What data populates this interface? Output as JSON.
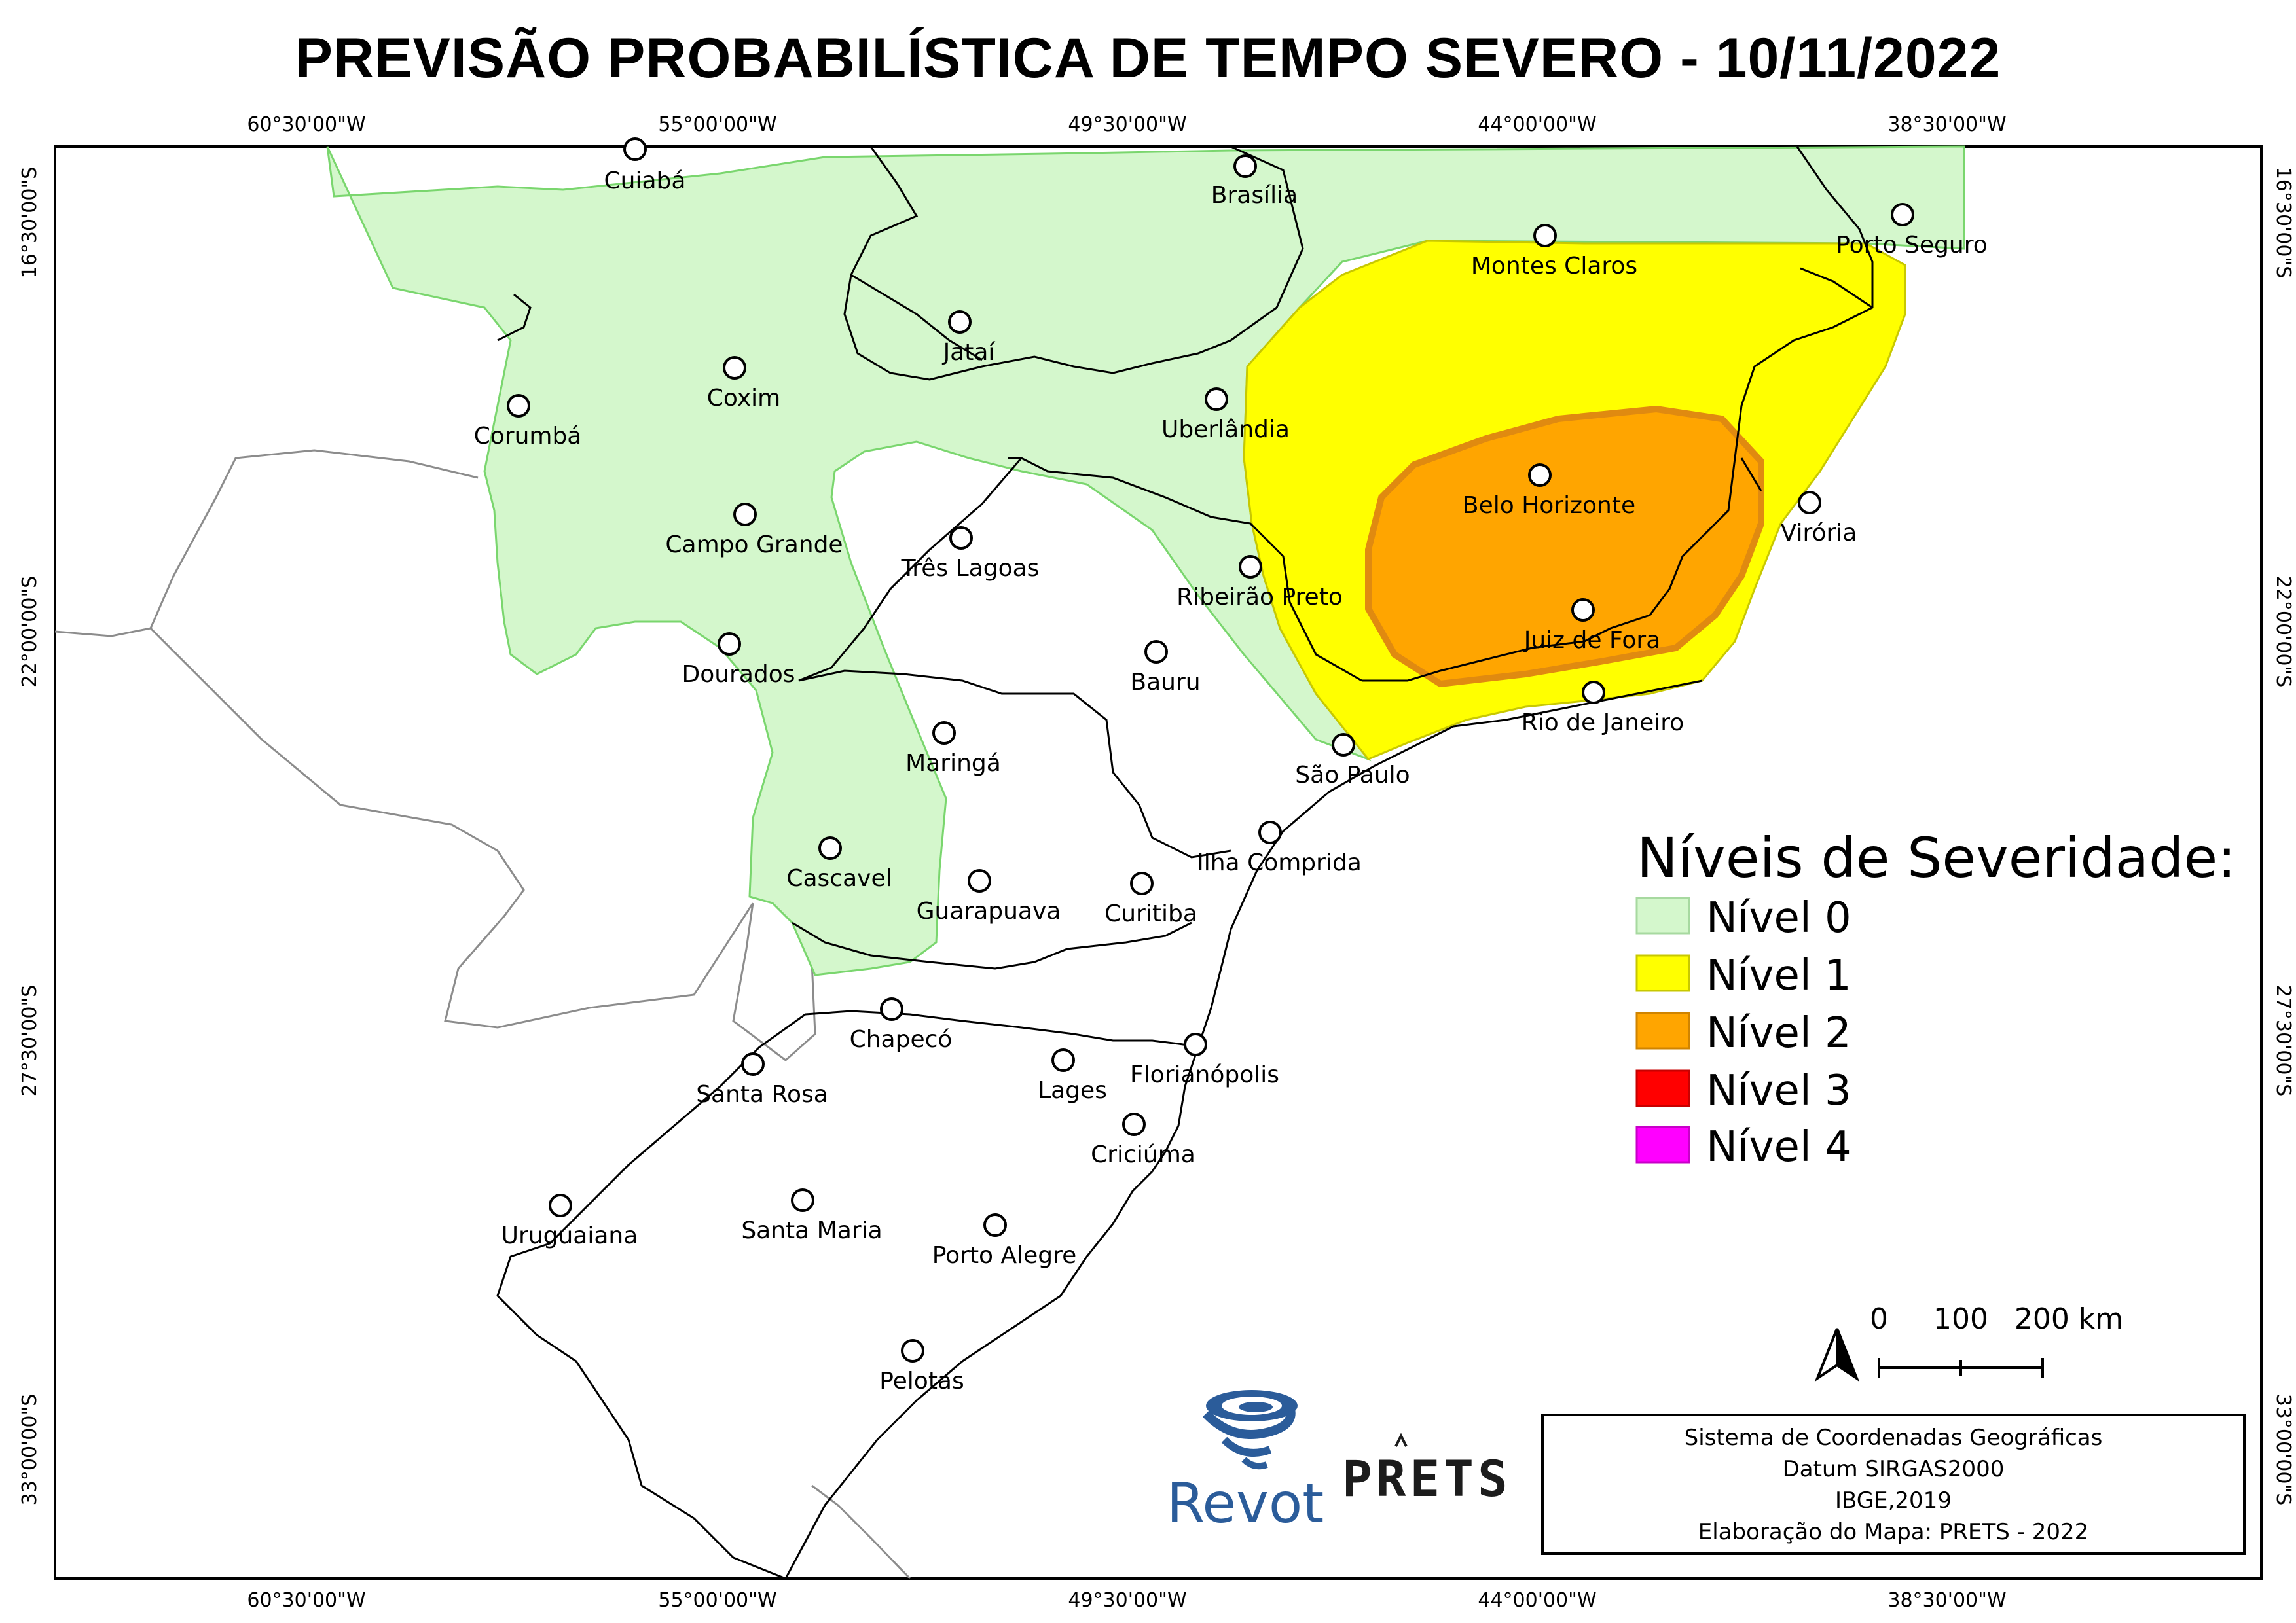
{
  "title": "PREVISÃO PROBABILÍSTICA DE TEMPO SEVERO - 10/11/2022",
  "coords": {
    "longitudes": [
      "60°30'00\"W",
      "55°00'00\"W",
      "49°30'00\"W",
      "44°00'00\"W",
      "38°30'00\"W"
    ],
    "latitudes": [
      "16°30'00\"S",
      "22°00'00\"S",
      "27°30'00\"S",
      "33°00'00\"S"
    ]
  },
  "cities": [
    {
      "name": "Cuiabá"
    },
    {
      "name": "Brasília"
    },
    {
      "name": "Porto Seguro"
    },
    {
      "name": "Montes Claros"
    },
    {
      "name": "Jataí"
    },
    {
      "name": "Coxim"
    },
    {
      "name": "Corumbá"
    },
    {
      "name": "Uberlândia"
    },
    {
      "name": "Belo Horizonte"
    },
    {
      "name": "Campo Grande"
    },
    {
      "name": "Três Lagoas"
    },
    {
      "name": "Ribeirão Preto"
    },
    {
      "name": "Virória"
    },
    {
      "name": "Juiz de Fora"
    },
    {
      "name": "Dourados"
    },
    {
      "name": "Bauru"
    },
    {
      "name": "Rio de Janeiro"
    },
    {
      "name": "Maringá"
    },
    {
      "name": "São Paulo"
    },
    {
      "name": "Ilha Comprida"
    },
    {
      "name": "Cascavel"
    },
    {
      "name": "Guarapuava"
    },
    {
      "name": "Curitiba"
    },
    {
      "name": "Chapecó"
    },
    {
      "name": "Santa Rosa"
    },
    {
      "name": "Lages"
    },
    {
      "name": "Florianópolis"
    },
    {
      "name": "Criciúma"
    },
    {
      "name": "Uruguaiana"
    },
    {
      "name": "Santa Maria"
    },
    {
      "name": "Porto Alegre"
    },
    {
      "name": "Pelotas"
    }
  ],
  "legend": {
    "title": "Níveis de Severidade:",
    "items": [
      {
        "label": "Nível 0",
        "color": "#d4f7cc"
      },
      {
        "label": "Nível 1",
        "color": "#ffff00"
      },
      {
        "label": "Nível 2",
        "color": "#ffa500"
      },
      {
        "label": "Nível 3",
        "color": "#ff0000"
      },
      {
        "label": "Nível 4",
        "color": "#ff00ff"
      }
    ]
  },
  "scale": {
    "labels": [
      "0",
      "100",
      "200 km"
    ]
  },
  "info_box": {
    "lines": [
      "Sistema de Coordenadas Geográficas",
      "Datum SIRGAS2000",
      "IBGE,2019",
      "Elaboração do Mapa: PRETS - 2022"
    ]
  },
  "logos": {
    "revot": "Revot",
    "prets": "PRETS"
  },
  "colors": {
    "level0": "#d4f7cc",
    "level1": "#ffff00",
    "level2": "#ffa500",
    "level2_border": "#e08a10"
  }
}
